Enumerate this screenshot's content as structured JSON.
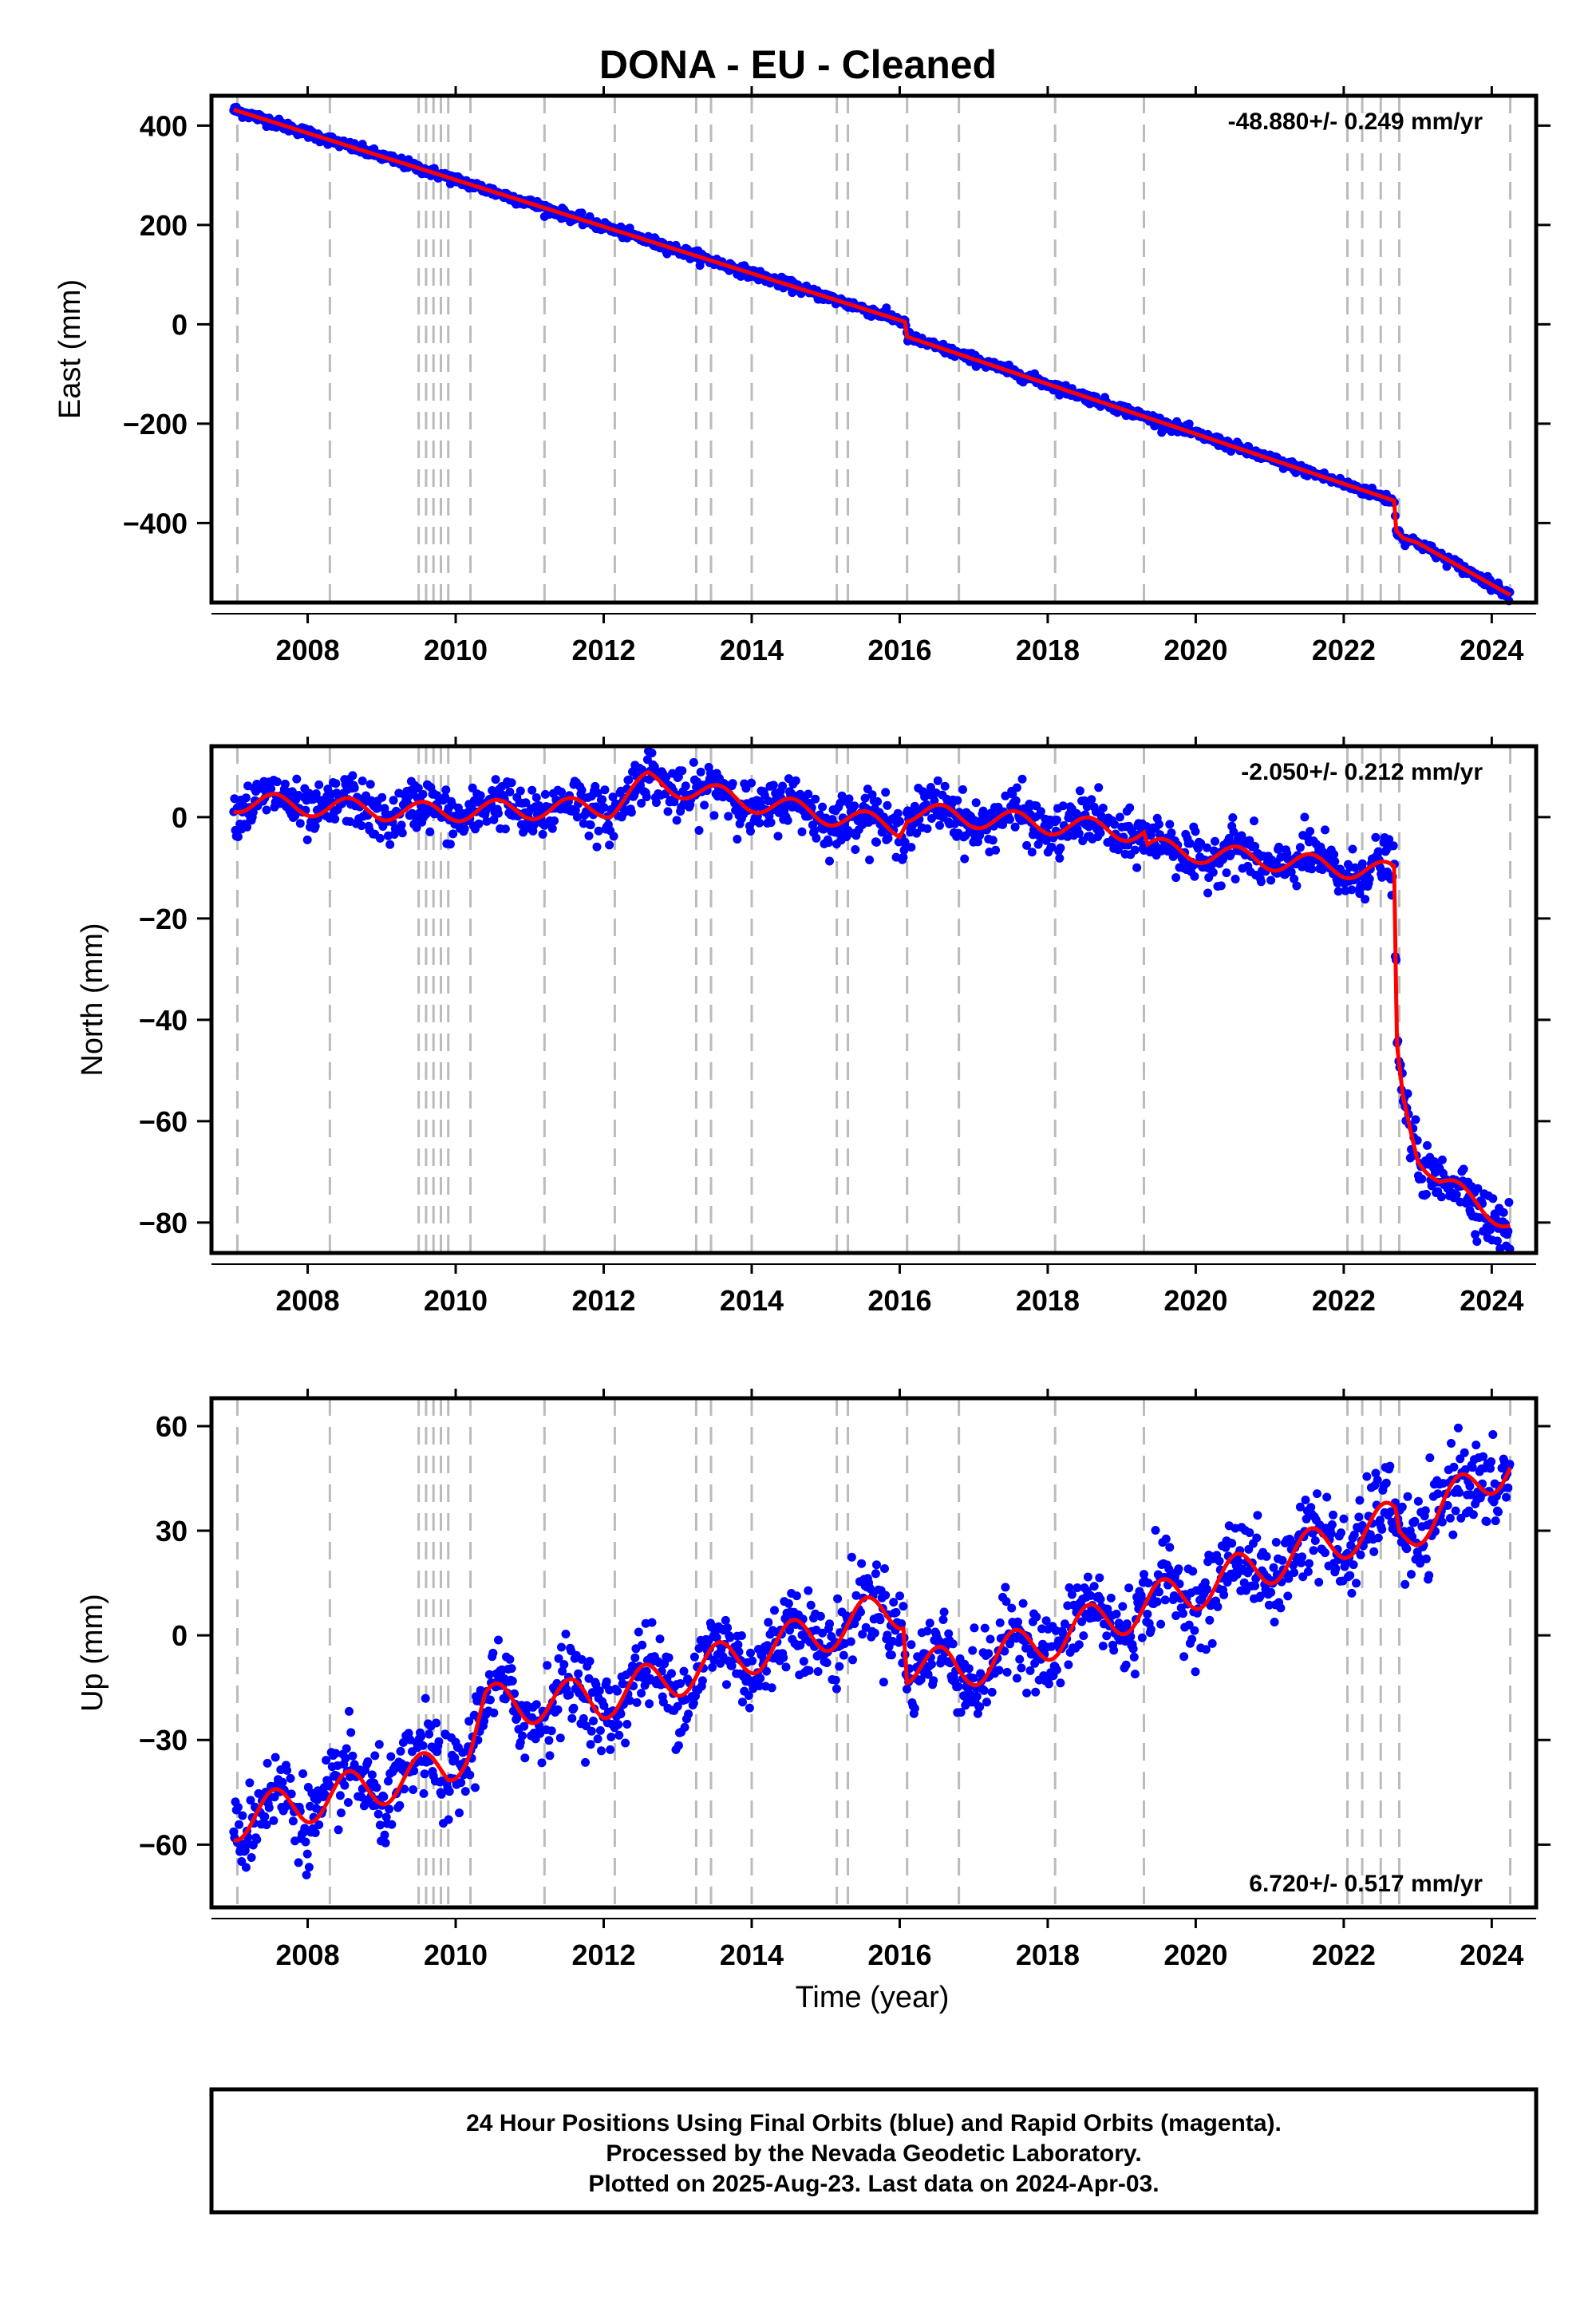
{
  "title": "DONA  - EU - Cleaned",
  "xlabel": "Time (year)",
  "x_ticks": [
    "2008",
    "2010",
    "2012",
    "2014",
    "2016",
    "2018",
    "2020",
    "2022",
    "2024"
  ],
  "footer": {
    "line1": "24 Hour Positions Using Final Orbits (blue) and Rapid Orbits (magenta).",
    "line2": "Processed by the Nevada Geodetic Laboratory.",
    "line3": "Plotted on 2025-Aug-23. Last data on 2024-Apr-03."
  },
  "colors": {
    "points": "#0000ff",
    "model": "#ff0000",
    "event_lines": "#bbbbbb"
  },
  "chart_data": [
    {
      "type": "scatter",
      "component": "east",
      "ylabel": "East (mm)",
      "rate_text": "-48.880+/- 0.249 mm/yr",
      "xlim": [
        2006.7,
        2024.6
      ],
      "ylim": [
        -560,
        460
      ],
      "y_ticks": [
        "400",
        "200",
        "0",
        "−200",
        "−400"
      ],
      "y_tick_values": [
        400,
        200,
        0,
        -200,
        -400
      ],
      "event_lines": [
        2007.05,
        2008.3,
        2009.5,
        2009.6,
        2009.7,
        2009.8,
        2009.9,
        2010.2,
        2011.2,
        2012.15,
        2013.25,
        2013.45,
        2014.0,
        2015.15,
        2015.3,
        2016.1,
        2016.8,
        2018.1,
        2019.3,
        2022.05,
        2022.25,
        2022.5,
        2022.75,
        2024.25
      ],
      "model": [
        [
          2007.0,
          432
        ],
        [
          2016.07,
          5
        ],
        [
          2016.1,
          -25
        ],
        [
          2022.68,
          -355
        ],
        [
          2022.71,
          -415
        ],
        [
          2022.8,
          -430
        ],
        [
          2023.0,
          -440
        ],
        [
          2024.25,
          -545
        ]
      ],
      "noise": 5
    },
    {
      "type": "scatter",
      "component": "north",
      "ylabel": "North (mm)",
      "rate_text": "-2.050+/- 0.212 mm/yr",
      "xlim": [
        2006.7,
        2024.6
      ],
      "ylim": [
        -86,
        14
      ],
      "y_ticks": [
        "0",
        "−20",
        "−40",
        "−60",
        "−80"
      ],
      "y_tick_values": [
        0,
        -20,
        -40,
        -60,
        -80
      ],
      "event_lines": [
        2007.05,
        2008.3,
        2009.5,
        2009.6,
        2009.7,
        2009.8,
        2009.9,
        2010.2,
        2011.2,
        2012.15,
        2013.25,
        2013.45,
        2014.0,
        2015.15,
        2015.3,
        2016.1,
        2016.8,
        2018.1,
        2019.3,
        2022.05,
        2022.25,
        2022.5,
        2022.75,
        2024.25
      ],
      "model": [
        [
          2007.0,
          3
        ],
        [
          2009.5,
          1
        ],
        [
          2012.1,
          2
        ],
        [
          2012.6,
          7
        ],
        [
          2014.0,
          3
        ],
        [
          2016.0,
          -2
        ],
        [
          2016.1,
          1
        ],
        [
          2019.3,
          -3
        ],
        [
          2019.35,
          -6
        ],
        [
          2022.68,
          -11
        ],
        [
          2022.72,
          -46
        ],
        [
          2022.8,
          -55
        ],
        [
          2023.0,
          -66
        ],
        [
          2023.3,
          -72
        ],
        [
          2024.25,
          -80
        ]
      ],
      "seasonal_amp": 2,
      "noise": 2.5
    },
    {
      "type": "scatter",
      "component": "up",
      "ylabel": "Up (mm)",
      "rate_text": "6.720+/- 0.517 mm/yr",
      "xlim": [
        2006.7,
        2024.6
      ],
      "ylim": [
        -78,
        68
      ],
      "y_ticks": [
        "60",
        "30",
        "0",
        "−30",
        "−60"
      ],
      "y_tick_values": [
        60,
        30,
        0,
        -30,
        -60
      ],
      "event_lines": [
        2007.05,
        2008.3,
        2009.5,
        2009.6,
        2009.7,
        2009.8,
        2009.9,
        2010.2,
        2011.2,
        2012.15,
        2013.25,
        2013.45,
        2014.0,
        2015.15,
        2015.3,
        2016.1,
        2016.8,
        2018.1,
        2019.3,
        2022.05,
        2022.25,
        2022.5,
        2022.75,
        2024.25
      ],
      "model": [
        [
          2007.0,
          -53
        ],
        [
          2009.9,
          -38
        ],
        [
          2010.2,
          -30
        ],
        [
          2010.4,
          -20
        ],
        [
          2012.0,
          -18
        ],
        [
          2016.05,
          8
        ],
        [
          2016.1,
          -8
        ],
        [
          2016.8,
          -10
        ],
        [
          2022.7,
          33
        ],
        [
          2022.75,
          28
        ],
        [
          2024.25,
          50
        ]
      ],
      "seasonal_amp": 6,
      "noise": 6
    }
  ]
}
